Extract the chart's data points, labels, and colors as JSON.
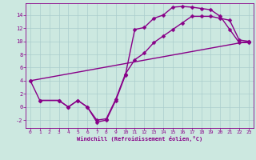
{
  "xlabel": "Windchill (Refroidissement éolien,°C)",
  "bg_color": "#cce8e0",
  "line_color": "#880088",
  "grid_color": "#aacccc",
  "xlim": [
    -0.5,
    23.5
  ],
  "ylim": [
    -3.2,
    15.8
  ],
  "xticks": [
    0,
    1,
    2,
    3,
    4,
    5,
    6,
    7,
    8,
    9,
    10,
    11,
    12,
    13,
    14,
    15,
    16,
    17,
    18,
    19,
    20,
    21,
    22,
    23
  ],
  "yticks": [
    -2,
    0,
    2,
    4,
    6,
    8,
    10,
    12,
    14
  ],
  "line1_x": [
    0,
    1,
    3,
    4,
    5,
    6,
    7,
    8,
    9,
    10,
    11,
    12,
    13,
    14,
    15,
    16,
    17,
    18,
    19,
    20,
    21,
    22,
    23
  ],
  "line1_y": [
    4,
    1,
    1,
    0,
    1,
    0,
    -2.3,
    -2.0,
    1.0,
    4.8,
    11.8,
    12.1,
    13.5,
    14.0,
    15.2,
    15.3,
    15.2,
    15.0,
    14.8,
    13.8,
    11.8,
    9.8,
    9.8
  ],
  "line2_x": [
    1,
    3,
    4,
    5,
    6,
    7,
    8,
    9,
    10,
    11,
    12,
    13,
    14,
    15,
    16,
    17,
    18,
    19,
    20,
    21,
    22,
    23
  ],
  "line2_y": [
    1,
    1,
    0,
    1,
    0,
    -2.0,
    -1.8,
    1.2,
    5.0,
    7.2,
    8.2,
    9.8,
    10.8,
    11.8,
    12.8,
    13.8,
    13.8,
    13.8,
    13.5,
    13.2,
    10.2,
    10.0
  ],
  "line3_x": [
    0,
    23
  ],
  "line3_y": [
    4,
    10
  ],
  "marker_style": "D",
  "marker_size": 2.5,
  "line_width": 1.0
}
